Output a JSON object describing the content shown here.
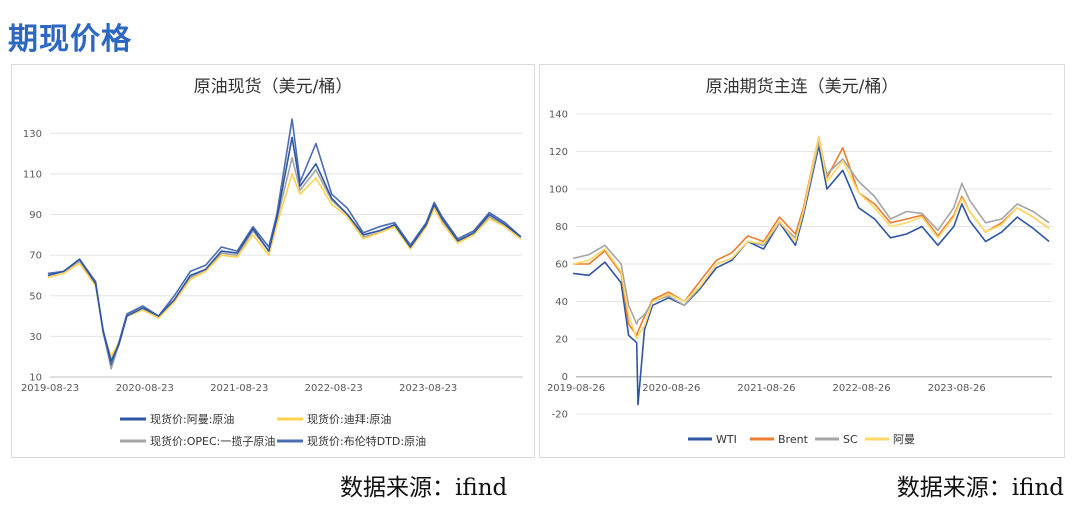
{
  "heading": "期现价格",
  "source_left": "数据来源：ifind",
  "source_right": "数据来源：ifind",
  "chart_data": [
    {
      "type": "line",
      "title": "原油现货（美元/桶）",
      "xlabel": "",
      "ylabel": "",
      "x_ticks": [
        "2019-08-23",
        "2020-08-23",
        "2021-08-23",
        "2022-08-23",
        "2023-08-23"
      ],
      "y_ticks": [
        10,
        30,
        50,
        70,
        90,
        110,
        130
      ],
      "ylim": [
        10,
        140
      ],
      "xlim": [
        "2019-08-23",
        "2024-08-23"
      ],
      "grid": "horizontal",
      "legend_position": "bottom",
      "x": [
        "2019-08",
        "2019-10",
        "2019-12",
        "2020-02",
        "2020-03",
        "2020-04",
        "2020-05",
        "2020-06",
        "2020-08",
        "2020-10",
        "2020-12",
        "2021-02",
        "2021-04",
        "2021-06",
        "2021-08",
        "2021-10",
        "2021-12",
        "2022-01",
        "2022-03",
        "2022-04",
        "2022-06",
        "2022-08",
        "2022-10",
        "2022-12",
        "2023-02",
        "2023-04",
        "2023-06",
        "2023-08",
        "2023-09",
        "2023-10",
        "2023-12",
        "2024-02",
        "2024-04",
        "2024-06",
        "2024-08"
      ],
      "series": [
        {
          "name": "现货价:阿曼:原油",
          "color": "#2f55a4",
          "values": [
            60,
            62,
            68,
            56,
            33,
            18,
            26,
            40,
            44,
            40,
            48,
            60,
            63,
            72,
            71,
            83,
            72,
            88,
            128,
            104,
            115,
            98,
            90,
            80,
            82,
            85,
            74,
            85,
            95,
            88,
            77,
            81,
            90,
            85,
            79
          ]
        },
        {
          "name": "现货价:迪拜:原油",
          "color": "#ffd24d",
          "values": [
            59,
            61,
            66,
            55,
            32,
            20,
            27,
            40,
            43,
            39,
            47,
            58,
            62,
            70,
            69,
            80,
            70,
            85,
            110,
            100,
            108,
            95,
            89,
            78,
            81,
            84,
            73,
            84,
            93,
            86,
            76,
            80,
            88,
            84,
            78
          ]
        },
        {
          "name": "现货价:OPEC:一揽子原油",
          "color": "#a5a5a5",
          "values": [
            60,
            62,
            67,
            56,
            33,
            14,
            26,
            40,
            44,
            40,
            48,
            59,
            63,
            71,
            70,
            82,
            72,
            87,
            118,
            102,
            112,
            97,
            90,
            79,
            81,
            85,
            74,
            85,
            94,
            87,
            77,
            80,
            89,
            84,
            78
          ]
        },
        {
          "name": "现货价:布伦特DTD:原油",
          "color": "#4a6cb3",
          "values": [
            61,
            62,
            68,
            57,
            32,
            16,
            27,
            41,
            45,
            40,
            50,
            62,
            65,
            74,
            72,
            84,
            74,
            90,
            137,
            106,
            125,
            100,
            93,
            81,
            84,
            86,
            75,
            86,
            96,
            89,
            78,
            82,
            91,
            86,
            79
          ]
        }
      ]
    },
    {
      "type": "line",
      "title": "原油期货主连（美元/桶）",
      "xlabel": "",
      "ylabel": "",
      "x_ticks": [
        "2019-08-26",
        "2020-08-26",
        "2021-08-26",
        "2022-08-26",
        "2023-08-26"
      ],
      "y_ticks": [
        -20,
        0,
        20,
        40,
        60,
        80,
        100,
        120,
        140
      ],
      "ylim": [
        -20,
        140
      ],
      "xlim": [
        "2019-08-26",
        "2024-08-26"
      ],
      "grid": "horizontal",
      "legend_position": "bottom",
      "x": [
        "2019-08",
        "2019-10",
        "2019-12",
        "2020-02",
        "2020-03",
        "2020-04",
        "2020-04-20",
        "2020-05",
        "2020-06",
        "2020-08",
        "2020-10",
        "2020-12",
        "2021-02",
        "2021-04",
        "2021-06",
        "2021-08",
        "2021-10",
        "2021-12",
        "2022-01",
        "2022-03",
        "2022-04",
        "2022-06",
        "2022-08",
        "2022-10",
        "2022-12",
        "2023-02",
        "2023-04",
        "2023-06",
        "2023-08",
        "2023-09",
        "2023-10",
        "2023-12",
        "2024-02",
        "2024-04",
        "2024-06",
        "2024-08"
      ],
      "series": [
        {
          "name": "WTI",
          "color": "#2f55a4",
          "values": [
            55,
            54,
            61,
            50,
            22,
            18,
            -15,
            25,
            38,
            42,
            38,
            47,
            58,
            62,
            72,
            68,
            82,
            70,
            86,
            123,
            100,
            110,
            90,
            84,
            74,
            76,
            80,
            70,
            80,
            92,
            83,
            72,
            77,
            85,
            79,
            72
          ]
        },
        {
          "name": "Brent",
          "color": "#ed7d31",
          "values": [
            60,
            60,
            67,
            55,
            28,
            22,
            24,
            32,
            41,
            45,
            40,
            51,
            62,
            66,
            75,
            72,
            85,
            76,
            90,
            128,
            106,
            122,
            98,
            92,
            82,
            84,
            86,
            75,
            86,
            96,
            88,
            77,
            82,
            90,
            85,
            79
          ]
        },
        {
          "name": "SC",
          "color": "#a5a5a5",
          "values": [
            63,
            65,
            70,
            60,
            38,
            28,
            30,
            33,
            40,
            43,
            38,
            48,
            60,
            63,
            72,
            70,
            82,
            74,
            88,
            125,
            108,
            116,
            104,
            96,
            84,
            88,
            87,
            78,
            90,
            103,
            94,
            82,
            84,
            92,
            88,
            82
          ]
        },
        {
          "name": "阿曼",
          "color": "#ffd966",
          "values": [
            60,
            62,
            68,
            56,
            33,
            20,
            22,
            27,
            40,
            44,
            40,
            48,
            60,
            63,
            72,
            71,
            83,
            72,
            88,
            128,
            104,
            115,
            98,
            90,
            80,
            82,
            85,
            74,
            85,
            95,
            88,
            77,
            81,
            90,
            85,
            79
          ]
        }
      ]
    }
  ]
}
